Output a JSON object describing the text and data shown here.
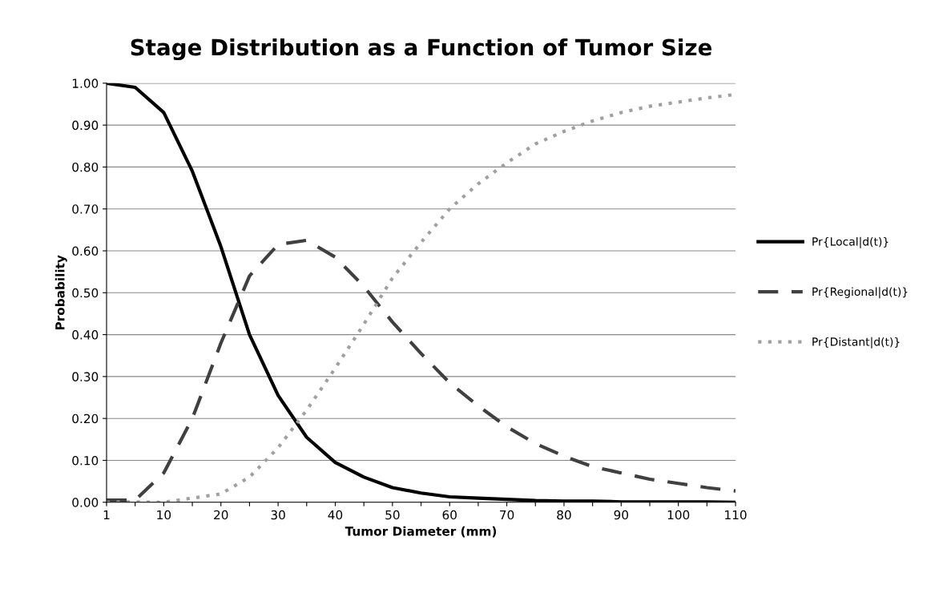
{
  "chart_data": {
    "type": "line",
    "title": "Stage Distribution as a Function of Tumor Size",
    "xlabel": "Tumor Diameter (mm)",
    "ylabel": "Probability",
    "categories": [
      "1",
      null,
      "10",
      null,
      "20",
      null,
      "30",
      null,
      "40",
      null,
      "50",
      null,
      "60",
      null,
      "70",
      null,
      "80",
      null,
      "90",
      null,
      "100",
      null,
      "110"
    ],
    "series": [
      {
        "name": "Pr{Local|d(t)}",
        "color": "#000000",
        "line_style": "solid",
        "values": [
          1.0,
          0.99,
          0.93,
          0.79,
          0.61,
          0.4,
          0.255,
          0.155,
          0.095,
          0.06,
          0.035,
          0.022,
          0.013,
          0.01,
          0.007,
          0.004,
          0.003,
          0.003,
          0.001,
          0.001,
          0.001,
          0.001,
          0.0
        ]
      },
      {
        "name": "Pr{Regional|d(t)}",
        "color": "#404040",
        "line_style": "dashed",
        "values": [
          0.005,
          0.005,
          0.07,
          0.2,
          0.38,
          0.54,
          0.615,
          0.625,
          0.585,
          0.515,
          0.43,
          0.355,
          0.285,
          0.23,
          0.18,
          0.14,
          0.11,
          0.085,
          0.07,
          0.055,
          0.045,
          0.035,
          0.027
        ]
      },
      {
        "name": "Pr{Distant|d(t)}",
        "color": "#a0a0a0",
        "line_style": "dotted",
        "values": [
          0.0,
          0.001,
          0.0,
          0.01,
          0.02,
          0.06,
          0.13,
          0.22,
          0.32,
          0.425,
          0.535,
          0.62,
          0.7,
          0.76,
          0.81,
          0.855,
          0.885,
          0.91,
          0.93,
          0.945,
          0.955,
          0.965,
          0.973
        ]
      }
    ],
    "ylim": [
      0,
      1
    ],
    "yticks": [
      {
        "value": 0,
        "label": "0.00"
      },
      {
        "value": 0.1,
        "label": "0.10"
      },
      {
        "value": 0.2,
        "label": "0.20"
      },
      {
        "value": 0.3,
        "label": "0.30"
      },
      {
        "value": 0.4,
        "label": "0.40"
      },
      {
        "value": 0.5,
        "label": "0.50"
      },
      {
        "value": 0.6,
        "label": "0.60"
      },
      {
        "value": 0.7,
        "label": "0.70"
      },
      {
        "value": 0.8,
        "label": "0.80"
      },
      {
        "value": 0.9,
        "label": "0.90"
      },
      {
        "value": 1,
        "label": "1.00"
      }
    ],
    "grid": "y",
    "legend": "right",
    "marker": "none"
  }
}
